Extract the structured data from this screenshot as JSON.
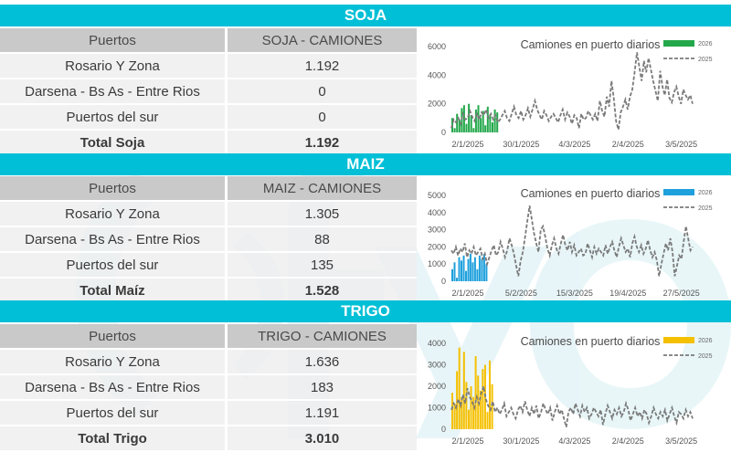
{
  "sections": [
    {
      "banner": "SOJA",
      "header": [
        "Puertos",
        "SOJA - CAMIONES"
      ],
      "rows": [
        [
          "Rosario Y Zona",
          "1.192"
        ],
        [
          "Darsena - Bs As - Entre Rios",
          "0"
        ],
        [
          "Puertos del sur",
          "0"
        ]
      ],
      "total": [
        "Total Soja",
        "1.192"
      ]
    },
    {
      "banner": "MAIZ",
      "header": [
        "Puertos",
        "MAIZ - CAMIONES"
      ],
      "rows": [
        [
          "Rosario Y Zona",
          "1.305"
        ],
        [
          "Darsena - Bs As - Entre Rios",
          "88"
        ],
        [
          "Puertos del sur",
          "135"
        ]
      ],
      "total": [
        "Total Maíz",
        "1.528"
      ]
    },
    {
      "banner": "TRIGO",
      "header": [
        "Puertos",
        "TRIGO - CAMIONES"
      ],
      "rows": [
        [
          "Rosario Y Zona",
          "1.636"
        ],
        [
          "Darsena - Bs As - Entre Rios",
          "183"
        ],
        [
          "Puertos del sur",
          "1.191"
        ]
      ],
      "total": [
        "Total Trigo",
        "3.010"
      ]
    }
  ],
  "colors": {
    "banner": "#00bfd6",
    "soja_2026": "#22a84a",
    "maiz_2026": "#1ea0dc",
    "trigo_2026": "#f5c000",
    "series_2025": "#7a7a7a",
    "watermark": "#c8e8ee"
  },
  "chart_data": [
    {
      "type": "bar",
      "title": "Camiones en puerto diarios",
      "ylim": [
        0,
        6000
      ],
      "yticks": [
        "0",
        "2000",
        "4000",
        "6000"
      ],
      "x_tick_labels": [
        "2/1/2025",
        "30/1/2025",
        "4/3/2025",
        "2/4/2025",
        "3/5/2025"
      ],
      "series": [
        {
          "name": "2026",
          "kind": "bar",
          "color": "#22a84a",
          "values": [
            1000,
            300,
            1300,
            900,
            1700,
            1900,
            600,
            2000,
            1200,
            300,
            1600,
            1900,
            1000,
            1500,
            500,
            1800,
            1200,
            700,
            1600,
            1400
          ]
        },
        {
          "name": "2025",
          "kind": "dashed-line",
          "values": [
            300,
            900,
            700,
            1000,
            600,
            1300,
            900,
            1000,
            1500,
            1100,
            800,
            1300,
            900,
            1400,
            1200,
            1600,
            1000,
            1300,
            900,
            1200,
            700,
            900,
            1200,
            1500,
            1000,
            800,
            1300,
            1800,
            1200,
            1000,
            1500,
            900,
            1200,
            1700,
            1100,
            1600,
            2200,
            1600,
            1200,
            900,
            1500,
            1200,
            800,
            1100,
            1300,
            1000,
            700,
            1200,
            1600,
            900,
            1400,
            1100,
            600,
            1200,
            1000,
            300,
            1300,
            900,
            1000,
            1500,
            1200,
            900,
            1300,
            800,
            2200,
            1500,
            1100,
            2500,
            1800,
            3600,
            2400,
            800,
            200,
            1400,
            1800,
            2300,
            1600,
            2500,
            3000,
            4200,
            5600,
            4600,
            3600,
            5000,
            4200,
            5200,
            4400,
            3600,
            2900,
            2200,
            4300,
            3200,
            2600,
            3700,
            2400,
            2100,
            2800,
            3200,
            2500,
            2000,
            3000,
            2600,
            2300,
            2600,
            2000
          ]
        }
      ]
    },
    {
      "type": "bar",
      "title": "Camiones en puerto diarios",
      "ylim": [
        0,
        5000
      ],
      "yticks": [
        "0",
        "1000",
        "2000",
        "3000",
        "4000",
        "5000"
      ],
      "x_tick_labels": [
        "2/1/2025",
        "5/2/2025",
        "15/3/2025",
        "19/4/2025",
        "27/5/2025"
      ],
      "series": [
        {
          "name": "2026",
          "kind": "bar",
          "color": "#1ea0dc",
          "values": [
            700,
            1100,
            200,
            1400,
            1200,
            1500,
            600,
            1300,
            1600,
            1100,
            1400,
            700,
            1500,
            1300,
            1600,
            1000
          ]
        },
        {
          "name": "2025",
          "kind": "dashed-line",
          "values": [
            1800,
            1600,
            2000,
            1500,
            1900,
            1700,
            2200,
            1400,
            1800,
            1600,
            2000,
            1500,
            1700,
            1900,
            1300,
            1600,
            1000,
            1400,
            1800,
            2100,
            1500,
            1700,
            2300,
            1900,
            1400,
            1800,
            2500,
            2100,
            1600,
            900,
            300,
            1200,
            1700,
            2600,
            3500,
            4400,
            3600,
            2800,
            2200,
            1700,
            3000,
            3200,
            2600,
            1900,
            1500,
            2100,
            2500,
            1900,
            1600,
            2200,
            2700,
            2100,
            1800,
            2300,
            1700,
            2100,
            1500,
            1700,
            1900,
            1500,
            1600,
            2200,
            1800,
            1400,
            2000,
            1600,
            1900,
            1700,
            1500,
            2100,
            1600,
            2000,
            2300,
            1800,
            1400,
            2000,
            2500,
            2100,
            1700,
            1900,
            1400,
            2200,
            2600,
            2000,
            1700,
            2100,
            1600,
            1900,
            2400,
            1800,
            1400,
            1700,
            1200,
            300,
            1000,
            1600,
            2200,
            1800,
            2500,
            1700,
            300,
            900,
            1500,
            1300,
            2300,
            3200,
            2500,
            1800,
            2000
          ]
        }
      ]
    },
    {
      "type": "bar",
      "title": "Camiones en puerto diarios",
      "ylim": [
        0,
        4000
      ],
      "yticks": [
        "0",
        "1000",
        "2000",
        "3000",
        "4000"
      ],
      "x_tick_labels": [
        "2/1/2025",
        "30/1/2025",
        "4/3/2025",
        "2/4/2025",
        "3/5/2025"
      ],
      "series": [
        {
          "name": "2026",
          "kind": "bar",
          "color": "#f5c000",
          "values": [
            1700,
            1200,
            2700,
            3800,
            1500,
            3600,
            2200,
            900,
            2000,
            1500,
            3400,
            2500,
            1800,
            2800,
            3000,
            800,
            3200,
            2100
          ]
        },
        {
          "name": "2025",
          "kind": "dashed-line",
          "values": [
            900,
            1200,
            1000,
            1400,
            1100,
            1600,
            1200,
            1900,
            1500,
            1300,
            1000,
            1500,
            1200,
            1700,
            2000,
            1400,
            1100,
            900,
            1300,
            800,
            1000,
            700,
            900,
            1200,
            600,
            800,
            1000,
            700,
            500,
            900,
            1100,
            800,
            1300,
            900,
            600,
            1000,
            700,
            1100,
            500,
            800,
            1200,
            900,
            700,
            1000,
            400,
            800,
            1100,
            700,
            900,
            500,
            100,
            800,
            1000,
            700,
            1200,
            900,
            600,
            1100,
            800,
            1000,
            500,
            700,
            1000,
            800,
            600,
            900,
            200,
            700,
            1100,
            800,
            500,
            900,
            700,
            1000,
            600,
            800,
            1200,
            900,
            400,
            700,
            1000,
            600,
            800,
            500,
            900,
            700,
            300,
            600,
            1000,
            700,
            500,
            800,
            600,
            900,
            400,
            700,
            1000,
            600,
            300,
            800,
            700,
            500,
            900,
            600,
            800,
            500
          ]
        }
      ]
    }
  ]
}
